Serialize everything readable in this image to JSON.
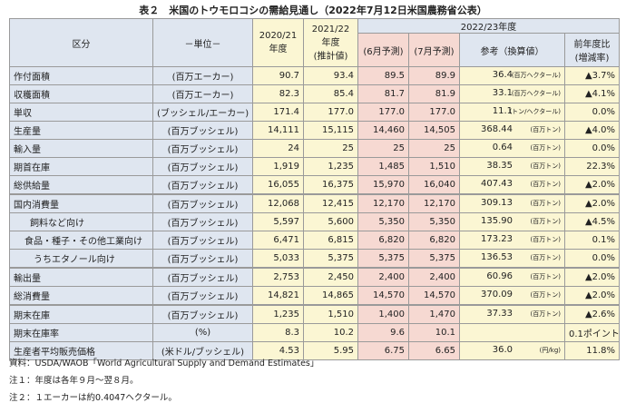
{
  "title": "表２　米国のトウモロコシの需給見通し（2022年7月12日米国農務省公表）",
  "headers": {
    "category": "区分",
    "unit": "－単位－",
    "y2020_line1": "2020/21",
    "y2020_line2": "年度",
    "y2021_line1": "2021/22",
    "y2021_line2": "年度",
    "y2021_line3": "(推計値)",
    "y2022": "2022/23年度",
    "june": "(6月予測)",
    "july": "(7月予測)",
    "reference": "参考（換算値）",
    "change_line1": "前年度比",
    "change_line2": "(増減率)"
  },
  "rows": [
    {
      "label": "作付面積",
      "unit": "(百万エーカー)",
      "y2020": "90.7",
      "y2021": "93.4",
      "june": "89.5",
      "july": "89.9",
      "ref": "36.4",
      "ref_unit": "(百万ヘクタール)",
      "change": "▲3.7%"
    },
    {
      "label": "収穫面積",
      "unit": "(百万エーカー)",
      "y2020": "82.3",
      "y2021": "85.4",
      "june": "81.7",
      "july": "81.9",
      "ref": "33.1",
      "ref_unit": "(百万ヘクタール)",
      "change": "▲4.1%"
    },
    {
      "label": "単収",
      "unit": "(ブッシェル/エーカー)",
      "y2020": "171.4",
      "y2021": "177.0",
      "june": "177.0",
      "july": "177.0",
      "ref": "11.1",
      "ref_unit": "(トン/ヘクタール)",
      "change": "0.0%"
    },
    {
      "label": "生産量",
      "unit": "(百万ブッシェル)",
      "y2020": "14,111",
      "y2021": "15,115",
      "june": "14,460",
      "july": "14,505",
      "ref": "368.44",
      "ref_unit": "(百万トン)",
      "change": "▲4.0%"
    },
    {
      "label": "輸入量",
      "unit": "(百万ブッシェル)",
      "y2020": "24",
      "y2021": "25",
      "june": "25",
      "july": "25",
      "ref": "0.64",
      "ref_unit": "(百万トン)",
      "change": "0.0%"
    },
    {
      "label": "期首在庫",
      "unit": "(百万ブッシェル)",
      "y2020": "1,919",
      "y2021": "1,235",
      "june": "1,485",
      "july": "1,510",
      "ref": "38.35",
      "ref_unit": "(百万トン)",
      "change": "22.3%"
    },
    {
      "label": "総供給量",
      "unit": "(百万ブッシェル)",
      "y2020": "16,055",
      "y2021": "16,375",
      "june": "15,970",
      "july": "16,040",
      "ref": "407.43",
      "ref_unit": "(百万トン)",
      "change": "▲2.0%"
    },
    {
      "label": "国内消費量",
      "unit": "(百万ブッシェル)",
      "y2020": "12,068",
      "y2021": "12,415",
      "june": "12,170",
      "july": "12,170",
      "ref": "309.13",
      "ref_unit": "(百万トン)",
      "change": "▲2.0%"
    },
    {
      "label": "飼料など向け",
      "unit": "(百万ブッシェル)",
      "y2020": "5,597",
      "y2021": "5,600",
      "june": "5,350",
      "july": "5,350",
      "ref": "135.90",
      "ref_unit": "(百万トン)",
      "change": "▲4.5%"
    },
    {
      "label": "食品・種子・その他工業向け",
      "unit": "(百万ブッシェル)",
      "y2020": "6,471",
      "y2021": "6,815",
      "june": "6,820",
      "july": "6,820",
      "ref": "173.23",
      "ref_unit": "(百万トン)",
      "change": "0.1%"
    },
    {
      "label": "うちエタノール向け",
      "unit": "(百万ブッシェル)",
      "y2020": "5,033",
      "y2021": "5,375",
      "june": "5,375",
      "july": "5,375",
      "ref": "136.53",
      "ref_unit": "(百万トン)",
      "change": "0.0%"
    },
    {
      "label": "輸出量",
      "unit": "(百万ブッシェル)",
      "y2020": "2,753",
      "y2021": "2,450",
      "june": "2,400",
      "july": "2,400",
      "ref": "60.96",
      "ref_unit": "(百万トン)",
      "change": "▲2.0%"
    },
    {
      "label": "総消費量",
      "unit": "(百万ブッシェル)",
      "y2020": "14,821",
      "y2021": "14,865",
      "june": "14,570",
      "july": "14,570",
      "ref": "370.09",
      "ref_unit": "(百万トン)",
      "change": "▲2.0%"
    },
    {
      "label": "期末在庫",
      "unit": "(百万ブッシェル)",
      "y2020": "1,235",
      "y2021": "1,510",
      "june": "1,400",
      "july": "1,470",
      "ref": "37.33",
      "ref_unit": "(百万トン)",
      "change": "▲2.6%"
    },
    {
      "label": "期末在庫率",
      "unit": "(%)",
      "y2020": "8.3",
      "y2021": "10.2",
      "june": "9.6",
      "july": "10.1",
      "ref": "",
      "ref_unit": "",
      "change": "0.1ポイント 減"
    },
    {
      "label": "生産者平均販売価格",
      "unit": "(米ドル/ブッシェル)",
      "y2020": "4.53",
      "y2021": "5.95",
      "june": "6.75",
      "july": "6.65",
      "ref": "36.0",
      "ref_unit": "(円/kg)",
      "change": "11.8%"
    }
  ],
  "notes": [
    "資料：USDA/WAOB「World Agricultural Supply and Demand Estimates」",
    "注１：年度は各年９月～翌８月。",
    "注２：１エーカーは約0.4047ヘクタール。"
  ]
}
